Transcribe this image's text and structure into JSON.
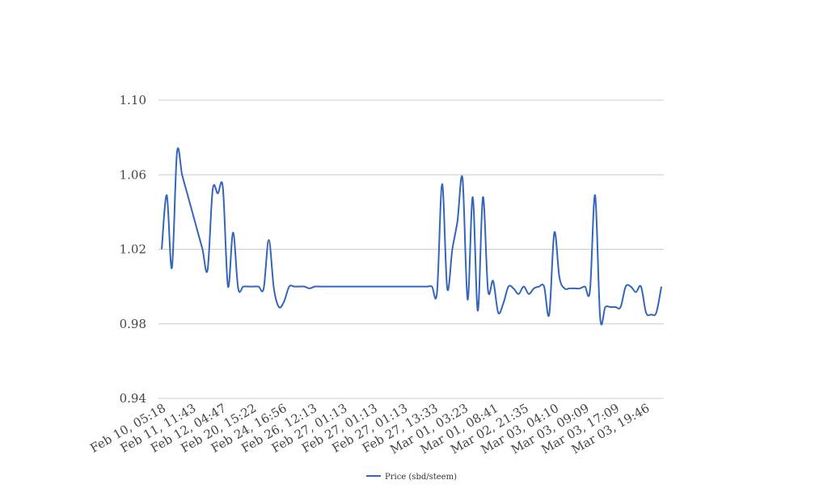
{
  "chart_data": {
    "type": "line",
    "title": "",
    "xlabel": "",
    "ylabel": "",
    "ylim": [
      0.94,
      1.1
    ],
    "y_ticks": [
      "0.94",
      "0.98",
      "1.02",
      "1.06",
      "1.10"
    ],
    "x_tick_labels": [
      "Feb 10, 05:18",
      "Feb 11, 11:43",
      "Feb 12, 04:47",
      "Feb 20, 15:22",
      "Feb 24, 16:56",
      "Feb 26, 12:13",
      "Feb 27, 01:13",
      "Feb 27, 01:13",
      "Feb 27, 01:13",
      "Feb 27, 13:33",
      "Mar 01, 03:23",
      "Mar 01, 08:41",
      "Mar 02, 21:35",
      "Mar 03, 04:10",
      "Mar 03, 09:09",
      "Mar 03, 17:09",
      "Mar 03, 19:46"
    ],
    "grid": true,
    "legend_position": "bottom",
    "series": [
      {
        "name": "Price (sbd/steem)",
        "color": "#3366bb",
        "values": [
          1.02,
          1.049,
          1.01,
          1.072,
          1.06,
          1.05,
          1.04,
          1.03,
          1.02,
          1.009,
          1.052,
          1.05,
          1.053,
          1.0,
          1.029,
          0.999,
          1.0,
          1.0,
          1.0,
          1.0,
          0.999,
          1.025,
          0.999,
          0.989,
          0.992,
          1.0,
          1.0,
          1.0,
          1.0,
          0.999,
          1.0,
          1.0,
          1.0,
          1.0,
          1.0,
          1.0,
          1.0,
          1.0,
          1.0,
          1.0,
          1.0,
          1.0,
          1.0,
          1.0,
          1.0,
          1.0,
          1.0,
          1.0,
          1.0,
          1.0,
          1.0,
          1.0,
          1.0,
          1.0,
          0.997,
          1.055,
          0.999,
          1.02,
          1.035,
          1.058,
          0.993,
          1.048,
          0.987,
          1.048,
          0.998,
          1.003,
          0.986,
          0.991,
          1.0,
          0.999,
          0.996,
          1.0,
          0.996,
          0.999,
          1.0,
          1.0,
          0.985,
          1.029,
          1.005,
          0.999,
          0.999,
          0.999,
          0.999,
          1.0,
          0.998,
          1.049,
          0.983,
          0.989,
          0.989,
          0.989,
          0.989,
          1.0,
          1.0,
          0.997,
          1.0,
          0.986,
          0.985,
          0.986,
          1.0
        ]
      }
    ]
  }
}
